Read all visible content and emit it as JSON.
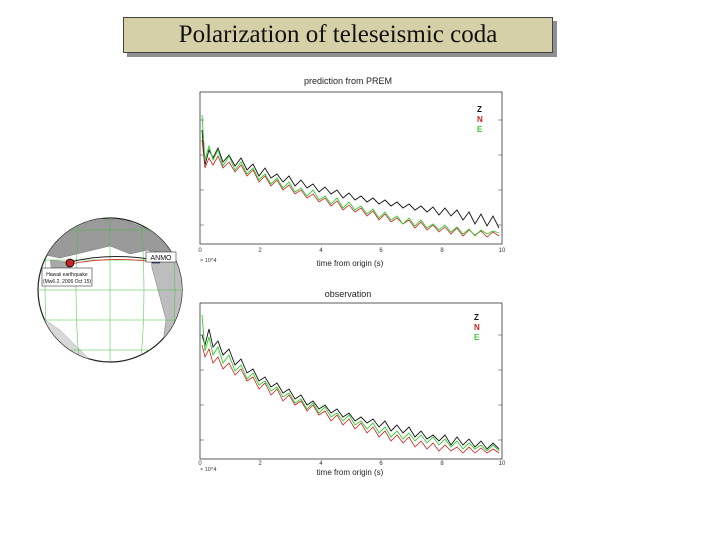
{
  "slide": {
    "title": "Polarization of teleseismic coda"
  },
  "globe": {
    "station_label": "ANMO",
    "event_label_1": "Hawaii earthquake",
    "event_label_2": "(Mw6.2, 2006 Oct 15)"
  },
  "panels": [
    {
      "title": "prediction from PREM",
      "xlabel": "time from origin (s)",
      "xticks": [
        "0",
        "2",
        "4",
        "6",
        "8",
        "10"
      ],
      "xunit": "× 10^4",
      "legend": [
        "Z",
        "N",
        "E"
      ]
    },
    {
      "title": "observation",
      "xlabel": "time from origin (s)",
      "xticks": [
        "0",
        "2",
        "4",
        "6",
        "8",
        "10"
      ],
      "xunit": "× 10^4",
      "legend": [
        "Z",
        "N",
        "E"
      ]
    }
  ],
  "colors": {
    "Z": "#111111",
    "N": "#cc2222",
    "E": "#33cc33"
  }
}
